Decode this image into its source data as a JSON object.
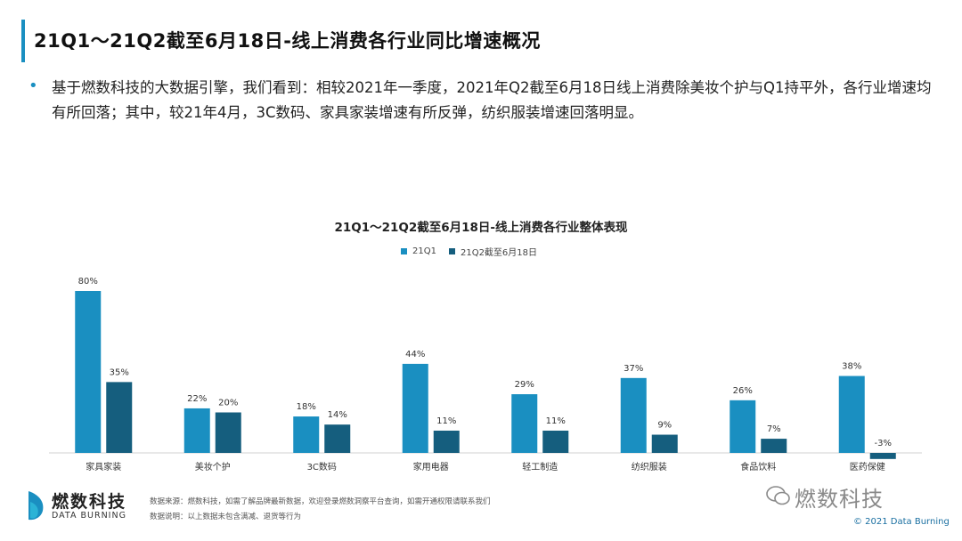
{
  "page": {
    "title": "21Q1～21Q2截至6月18日-线上消费各行业同比增速概况",
    "bullet_symbol": "•",
    "description": "基于燃数科技的大数据引擎，我们看到：相较2021年一季度，2021年Q2截至6月18日线上消费除美妆个护与Q1持平外，各行业增速均有所回落；其中，较21年4月，3C数码、家具家装增速有所反弹，纺织服装增速回落明显。"
  },
  "chart_data": {
    "type": "bar",
    "title": "21Q1～21Q2截至6月18日-线上消费各行业整体表现",
    "categories": [
      "家具家装",
      "美妆个护",
      "3C数码",
      "家用电器",
      "轻工制造",
      "纺织服装",
      "食品饮料",
      "医药保健"
    ],
    "series": [
      {
        "name": "21Q1",
        "color": "#1a8fc1",
        "values": [
          80,
          22,
          18,
          44,
          29,
          37,
          26,
          38
        ]
      },
      {
        "name": "21Q2截至6月18日",
        "color": "#155e7e",
        "values": [
          35,
          20,
          14,
          11,
          11,
          9,
          7,
          -3
        ]
      }
    ],
    "value_suffix": "%",
    "ylim": [
      -5,
      85
    ],
    "legend": "top-center",
    "grid": false
  },
  "footer": {
    "brand_cn": "燃数科技",
    "brand_en": "DATA BURNING",
    "source_note": "数据来源：燃数科技，如需了解品牌最新数据，欢迎登录燃数洞察平台查询，如需开通权限请联系我们",
    "data_note": "数据说明：以上数据未包含满减、退货等行为",
    "watermark": "燃数科技",
    "copyright": "© 2021 Data Burning"
  }
}
